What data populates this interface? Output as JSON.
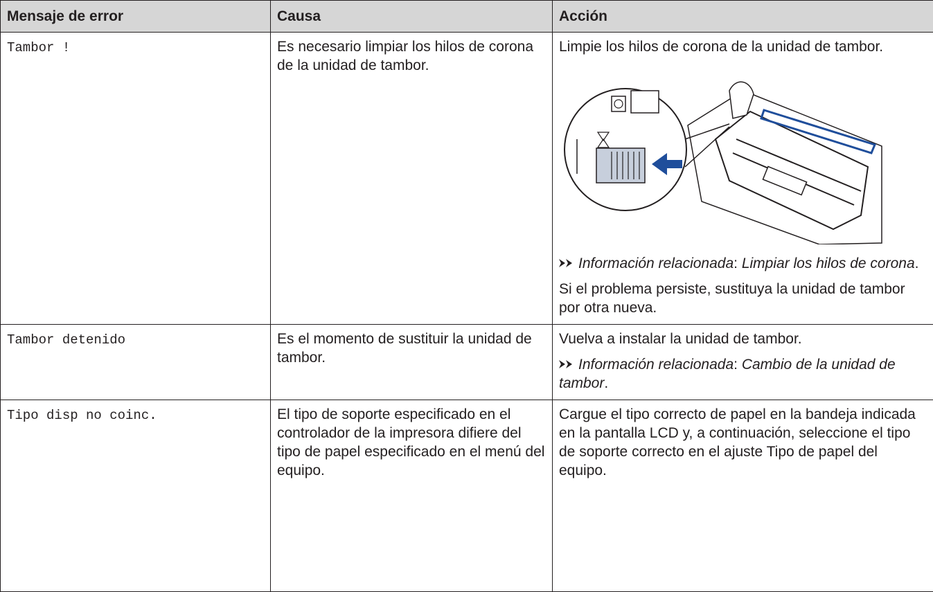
{
  "table": {
    "headers": [
      "Mensaje de error",
      "Causa",
      "Acción"
    ],
    "rows": [
      {
        "message": "Tambor !",
        "cause": "Es necesario limpiar los hilos de corona de la unidad de tambor.",
        "action": {
          "intro": "Limpie los hilos de corona de la unidad de tambor.",
          "related": {
            "label": "Información relacionada",
            "sep": ":",
            "link": "Limpiar los hilos de corona",
            "end": "."
          },
          "note": "Si el problema persiste, sustituya la unidad de tambor por otra nueva."
        }
      },
      {
        "message": "Tambor detenido",
        "cause": "Es el momento de sustituir la unidad de tambor.",
        "action": {
          "intro": "Vuelva a instalar la unidad de tambor.",
          "related": {
            "label": "Información relacionada",
            "sep": ":",
            "link": "Cambio de la unidad de tambor",
            "end": "."
          }
        }
      },
      {
        "message": "Tipo disp no coinc.",
        "cause": "El tipo de soporte especificado en el controlador de la impresora difiere del tipo de papel especificado en el menú del equipo.",
        "action": {
          "intro": "Cargue el tipo correcto de papel en la bandeja indicada en la pantalla LCD y, a continuación, seleccione el tipo de soporte correcto en el ajuste Tipo de papel del equipo."
        }
      }
    ]
  }
}
